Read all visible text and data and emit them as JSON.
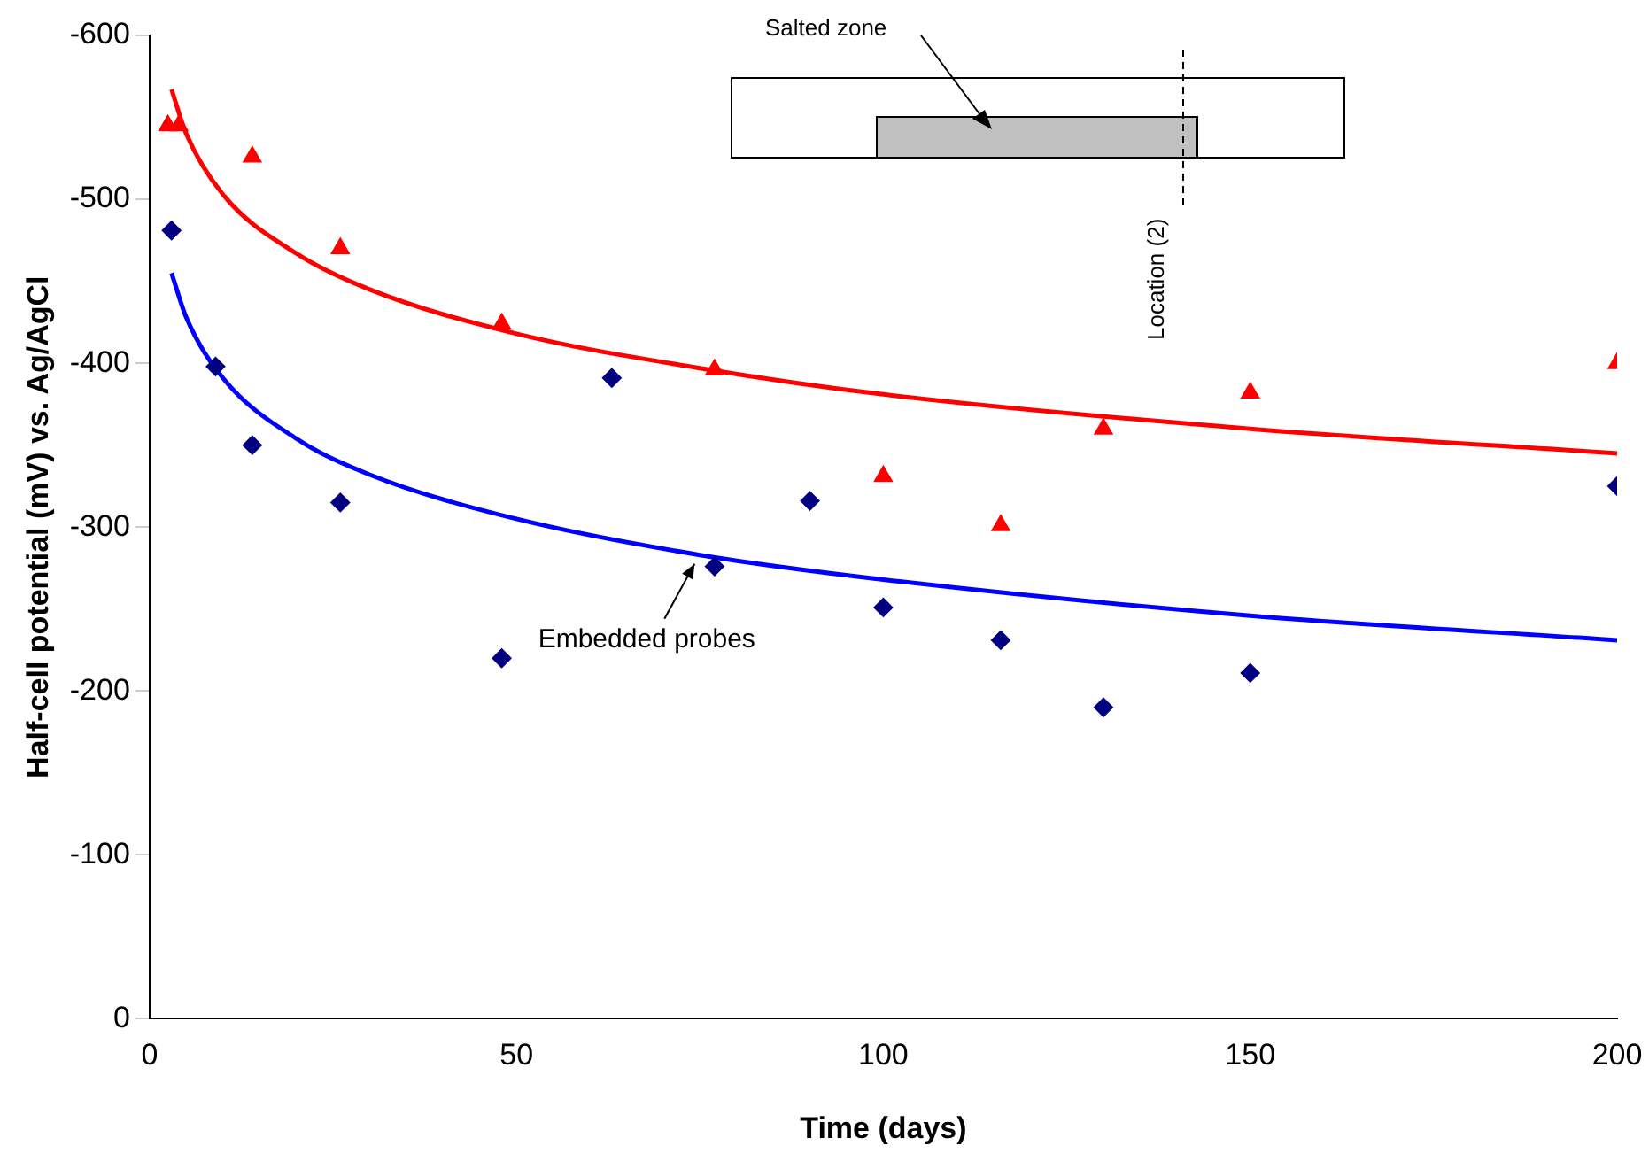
{
  "chart_data": {
    "type": "scatter",
    "xlabel": "Time (days)",
    "ylabel": "Half-cell potential (mV) vs. Ag/AgCl",
    "xlim": [
      0,
      200
    ],
    "xticks": [
      0,
      50,
      100,
      150,
      200
    ],
    "ylim": [
      0,
      -600
    ],
    "yticks": [
      0,
      -100,
      -200,
      -300,
      -400,
      -500,
      -600
    ],
    "grid": false,
    "legend": false,
    "annotations": [
      "Salted zone",
      "Location (2)"
    ],
    "series": [
      {
        "type": "scatter",
        "marker": "triangle",
        "color": "#ff0000",
        "x": [
          2.5,
          4,
          14,
          26,
          48,
          77,
          100,
          116,
          130,
          150,
          200
        ],
        "values": [
          -545,
          -545,
          -526,
          -470,
          -424,
          -396,
          -331,
          -301,
          -360,
          -382,
          -400
        ]
      },
      {
        "type": "scatter",
        "marker": "diamond",
        "color": "#000080",
        "x": [
          3,
          9,
          14,
          26,
          48,
          63,
          77,
          90,
          100,
          116,
          130,
          150,
          200
        ],
        "values": [
          -481,
          -398,
          -350,
          -315,
          -220,
          -391,
          -276,
          -316,
          -251,
          -231,
          -190,
          -211,
          -325
        ]
      },
      {
        "type": "line",
        "marker": "none",
        "color": "#ff0000",
        "x": [
          3,
          5,
          10,
          20,
          30,
          50,
          75,
          100,
          150,
          200
        ],
        "values": [
          -567,
          -540,
          -503,
          -467,
          -445,
          -418,
          -397,
          -381,
          -360,
          -345
        ]
      },
      {
        "type": "line",
        "marker": "none",
        "name": "Embedded probes",
        "color": "#0000ff",
        "x": [
          3,
          5,
          10,
          20,
          30,
          50,
          75,
          100,
          150,
          200
        ],
        "values": [
          -455,
          -428,
          -391,
          -354,
          -332,
          -305,
          -283,
          -268,
          -246,
          -231
        ]
      }
    ]
  }
}
